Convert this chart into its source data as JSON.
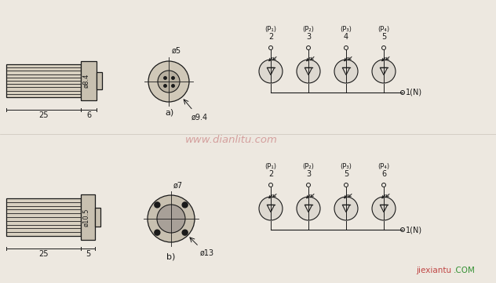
{
  "bg_color": "#ede8e0",
  "line_color": "#1a1a1a",
  "watermark_color": "#cc8888",
  "title_a": "a)",
  "title_b": "b)",
  "dim_top": {
    "body_length": "25",
    "cap_length": "6",
    "body_diam": "ø8.4",
    "circle_outer": "ø9.4",
    "circle_inner": "ø5"
  },
  "dim_bot": {
    "body_length": "25",
    "cap_length": "5",
    "body_diam": "ø10.5",
    "circle_outer": "ø13",
    "circle_inner": "ø7"
  },
  "circuit_top": {
    "labels": [
      "(P₁)",
      "(P₂)",
      "(P₃)",
      "(P₄)"
    ],
    "pins": [
      "2",
      "3",
      "4",
      "5"
    ],
    "common_label": "1(N)"
  },
  "circuit_bot": {
    "labels": [
      "(P₁)",
      "(P₂)",
      "(P₃)",
      "(P₄)"
    ],
    "pins": [
      "2",
      "3",
      "5",
      "6"
    ],
    "common_label": "1(N)"
  },
  "watermark": "www.dianlitu.com",
  "brand": "jiexiantu",
  "brand2": ".COM"
}
